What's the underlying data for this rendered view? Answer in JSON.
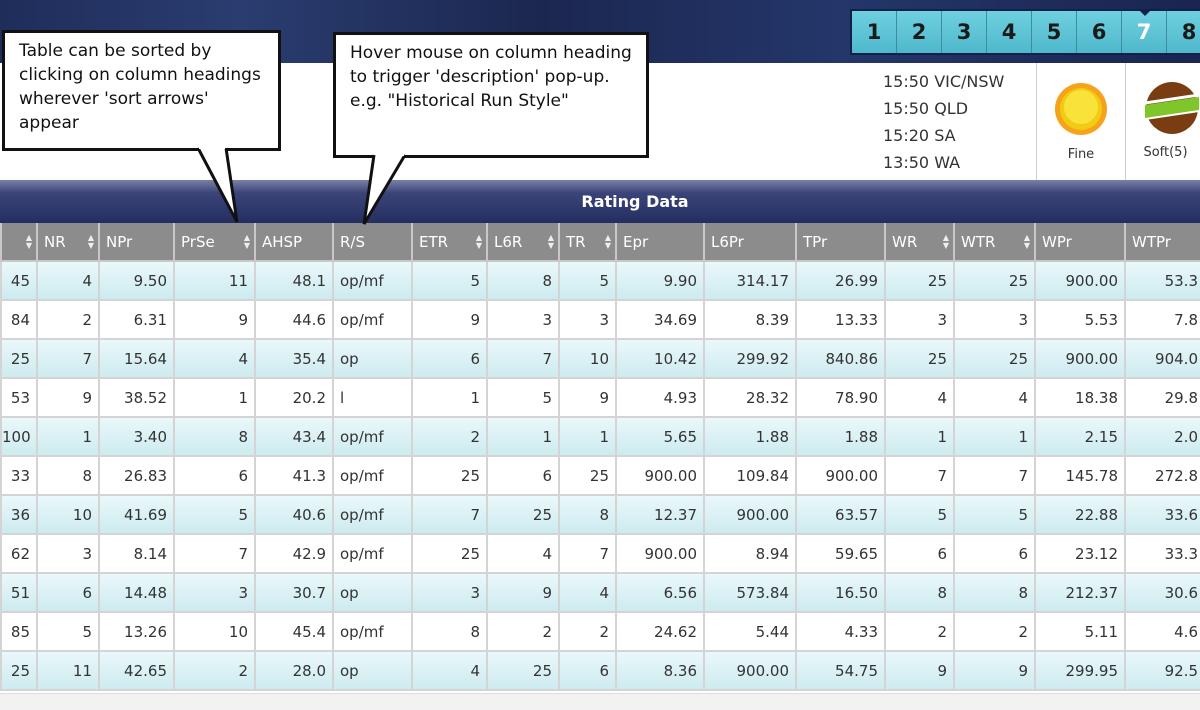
{
  "race_tabs": {
    "items": [
      "1",
      "2",
      "3",
      "4",
      "5",
      "6",
      "7",
      "8"
    ],
    "active": "7"
  },
  "start_times": [
    "15:50 VIC/NSW",
    "15:50 QLD",
    "15:20 SA",
    "13:50 WA"
  ],
  "weather": {
    "label": "Fine",
    "icon": "sun-icon"
  },
  "track": {
    "label": "Soft(5)",
    "icon": "track-icon"
  },
  "section_title": "Rating Data",
  "callouts": {
    "sort": "Table can be sorted by clicking on column headings wherever 'sort arrows' appear",
    "hover": "Hover mouse on column heading to trigger 'description' pop-up. e.g. \"Historical Run Style\""
  },
  "table": {
    "columns": [
      {
        "label": "",
        "sortable": true
      },
      {
        "label": "NR",
        "sortable": true
      },
      {
        "label": "NPr",
        "sortable": false
      },
      {
        "label": "PrSe",
        "sortable": true
      },
      {
        "label": "AHSP",
        "sortable": false
      },
      {
        "label": "R/S",
        "sortable": false
      },
      {
        "label": "ETR",
        "sortable": true
      },
      {
        "label": "L6R",
        "sortable": true
      },
      {
        "label": "TR",
        "sortable": true
      },
      {
        "label": "Epr",
        "sortable": false
      },
      {
        "label": "L6Pr",
        "sortable": false
      },
      {
        "label": "TPr",
        "sortable": false
      },
      {
        "label": "WR",
        "sortable": true
      },
      {
        "label": "WTR",
        "sortable": true
      },
      {
        "label": "WPr",
        "sortable": false
      },
      {
        "label": "WTPr",
        "sortable": false
      }
    ],
    "rows": [
      [
        "45",
        "4",
        "9.50",
        "11",
        "48.1",
        "op/mf",
        "5",
        "8",
        "5",
        "9.90",
        "314.17",
        "26.99",
        "25",
        "25",
        "900.00",
        "53.3"
      ],
      [
        "84",
        "2",
        "6.31",
        "9",
        "44.6",
        "op/mf",
        "9",
        "3",
        "3",
        "34.69",
        "8.39",
        "13.33",
        "3",
        "3",
        "5.53",
        "7.8"
      ],
      [
        "25",
        "7",
        "15.64",
        "4",
        "35.4",
        "op",
        "6",
        "7",
        "10",
        "10.42",
        "299.92",
        "840.86",
        "25",
        "25",
        "900.00",
        "904.0"
      ],
      [
        "53",
        "9",
        "38.52",
        "1",
        "20.2",
        "l",
        "1",
        "5",
        "9",
        "4.93",
        "28.32",
        "78.90",
        "4",
        "4",
        "18.38",
        "29.8"
      ],
      [
        "100",
        "1",
        "3.40",
        "8",
        "43.4",
        "op/mf",
        "2",
        "1",
        "1",
        "5.65",
        "1.88",
        "1.88",
        "1",
        "1",
        "2.15",
        "2.0"
      ],
      [
        "33",
        "8",
        "26.83",
        "6",
        "41.3",
        "op/mf",
        "25",
        "6",
        "25",
        "900.00",
        "109.84",
        "900.00",
        "7",
        "7",
        "145.78",
        "272.8"
      ],
      [
        "36",
        "10",
        "41.69",
        "5",
        "40.6",
        "op/mf",
        "7",
        "25",
        "8",
        "12.37",
        "900.00",
        "63.57",
        "5",
        "5",
        "22.88",
        "33.6"
      ],
      [
        "62",
        "3",
        "8.14",
        "7",
        "42.9",
        "op/mf",
        "25",
        "4",
        "7",
        "900.00",
        "8.94",
        "59.65",
        "6",
        "6",
        "23.12",
        "33.3"
      ],
      [
        "51",
        "6",
        "14.48",
        "3",
        "30.7",
        "op",
        "3",
        "9",
        "4",
        "6.56",
        "573.84",
        "16.50",
        "8",
        "8",
        "212.37",
        "30.6"
      ],
      [
        "85",
        "5",
        "13.26",
        "10",
        "45.4",
        "op/mf",
        "8",
        "2",
        "2",
        "24.62",
        "5.44",
        "4.33",
        "2",
        "2",
        "5.11",
        "4.6"
      ],
      [
        "25",
        "11",
        "42.65",
        "2",
        "28.0",
        "op",
        "4",
        "25",
        "6",
        "8.36",
        "900.00",
        "54.75",
        "9",
        "9",
        "299.95",
        "92.5"
      ]
    ]
  }
}
